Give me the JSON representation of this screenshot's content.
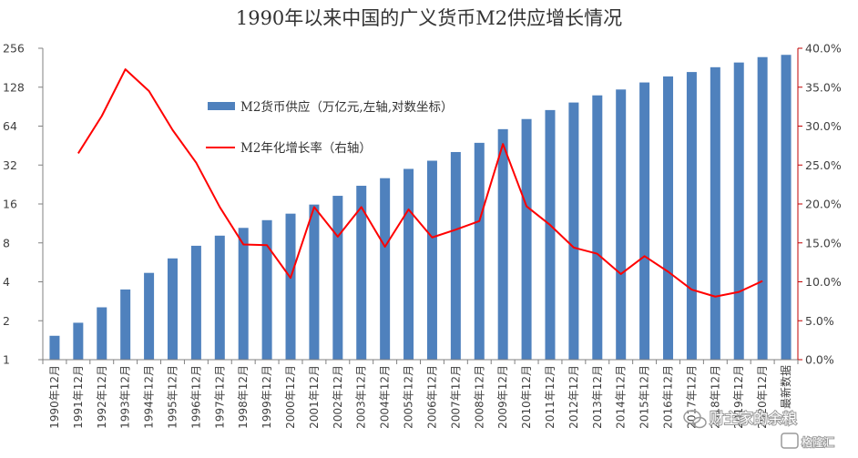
{
  "chart_data": {
    "type": "bar+line",
    "title": "1990年以来中国的广义货币M2供应增长情况",
    "categories": [
      "1990年12月",
      "1991年12月",
      "1992年12月",
      "1993年12月",
      "1994年12月",
      "1995年12月",
      "1996年12月",
      "1997年12月",
      "1998年12月",
      "1999年12月",
      "2000年12月",
      "2001年12月",
      "2002年12月",
      "2003年12月",
      "2004年12月",
      "2005年12月",
      "2006年12月",
      "2007年12月",
      "2008年12月",
      "2009年12月",
      "2010年12月",
      "2011年12月",
      "2012年12月",
      "2013年12月",
      "2014年12月",
      "2015年12月",
      "2016年12月",
      "2017年12月",
      "2018年12月",
      "2019年12月",
      "2020年12月",
      "最新数据"
    ],
    "series": [
      {
        "name": "M2货币供应（万亿元,左轴,对数坐标）",
        "type": "bar",
        "axis": "left",
        "color": "#4f81bd",
        "values": [
          1.53,
          1.93,
          2.54,
          3.49,
          4.69,
          6.07,
          7.6,
          9.1,
          10.45,
          11.99,
          13.46,
          15.83,
          18.5,
          22.12,
          25.32,
          29.88,
          34.56,
          40.34,
          47.52,
          60.62,
          72.59,
          85.16,
          97.41,
          110.65,
          122.84,
          139.23,
          155.01,
          167.68,
          182.67,
          198.65,
          218.68,
          227.65
        ]
      },
      {
        "name": "M2年化增长率（右轴）",
        "type": "line",
        "axis": "right",
        "color": "#ff0000",
        "values": [
          null,
          26.5,
          31.3,
          37.3,
          34.5,
          29.5,
          25.3,
          19.6,
          14.8,
          14.7,
          10.5,
          19.6,
          15.8,
          19.6,
          14.5,
          19.3,
          15.7,
          16.7,
          17.8,
          27.7,
          19.7,
          17.3,
          14.4,
          13.6,
          11.0,
          13.3,
          11.3,
          9.0,
          8.1,
          8.7,
          10.1,
          null
        ]
      }
    ],
    "y_left": {
      "scale": "log2",
      "ticks": [
        1,
        2,
        4,
        8,
        16,
        32,
        64,
        128,
        256
      ],
      "ylim": [
        1,
        256
      ]
    },
    "y_right": {
      "scale": "linear",
      "ticks": [
        "0.0%",
        "5.0%",
        "10.0%",
        "15.0%",
        "20.0%",
        "25.0%",
        "30.0%",
        "35.0%",
        "40.0%"
      ],
      "ylim": [
        0,
        40
      ]
    },
    "legend_position": "upper-left inside plot",
    "grid": false
  },
  "colors": {
    "bar": "#4f81bd",
    "line": "#ff0000",
    "left_axis": "#808080",
    "right_axis": "#c00000"
  },
  "watermark": {
    "text": "财主家的余粮",
    "logo_text": "格隆汇"
  }
}
